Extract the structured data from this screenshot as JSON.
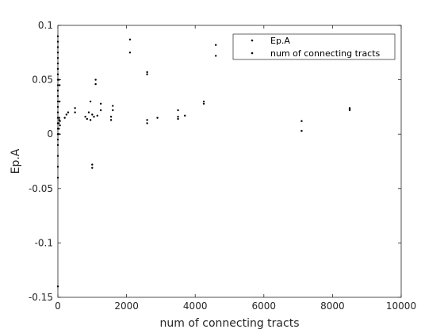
{
  "chart_data": {
    "type": "scatter",
    "title": "",
    "xlabel": "num of connecting tracts",
    "ylabel": "Ep.A",
    "xlim": [
      0,
      10000
    ],
    "ylim": [
      -0.15,
      0.1
    ],
    "xticks": [
      0,
      2000,
      4000,
      6000,
      8000,
      10000
    ],
    "yticks": [
      -0.15,
      -0.1,
      -0.05,
      0,
      0.05,
      0.1
    ],
    "xtick_labels": [
      "0",
      "2000",
      "4000",
      "6000",
      "8000",
      "10000"
    ],
    "ytick_labels": [
      "-0.15",
      "-0.1",
      "-0.05",
      "0",
      "0.05",
      "0.1"
    ],
    "grid": false,
    "legend_position": "top-right",
    "legend": [
      "Ep.A",
      "num of connecting tracts"
    ],
    "point_color": "#000000",
    "series": [
      {
        "name": "Ep.A",
        "points": [
          [
            0,
            -0.14
          ],
          [
            0,
            -0.04
          ],
          [
            0,
            -0.03
          ],
          [
            0,
            -0.02
          ],
          [
            0,
            -0.01
          ],
          [
            0,
            -0.005
          ],
          [
            0,
            0.0
          ],
          [
            0,
            0.005
          ],
          [
            0,
            0.01
          ],
          [
            0,
            0.015
          ],
          [
            0,
            0.02
          ],
          [
            0,
            0.025
          ],
          [
            0,
            0.03
          ],
          [
            0,
            0.035
          ],
          [
            0,
            0.04
          ],
          [
            0,
            0.045
          ],
          [
            0,
            0.05
          ],
          [
            0,
            0.055
          ],
          [
            0,
            0.06
          ],
          [
            0,
            0.065
          ],
          [
            0,
            0.07
          ],
          [
            0,
            0.075
          ],
          [
            0,
            0.08
          ],
          [
            0,
            0.085
          ],
          [
            0,
            0.09
          ],
          [
            30,
            0.0
          ],
          [
            30,
            0.005
          ],
          [
            30,
            0.01
          ],
          [
            40,
            0.015
          ],
          [
            40,
            0.013
          ],
          [
            50,
            0.03
          ],
          [
            50,
            0.045
          ],
          [
            30,
            0.05
          ],
          [
            60,
            0.012
          ],
          [
            60,
            0.008
          ],
          [
            200,
            0.015
          ],
          [
            250,
            0.018
          ],
          [
            300,
            0.02
          ],
          [
            500,
            0.024
          ],
          [
            500,
            0.02
          ],
          [
            800,
            0.016
          ],
          [
            850,
            0.014
          ],
          [
            900,
            0.02
          ],
          [
            950,
            0.013
          ],
          [
            950,
            0.03
          ],
          [
            1000,
            0.018
          ],
          [
            1050,
            0.016
          ],
          [
            1000,
            -0.028
          ],
          [
            1000,
            -0.031
          ],
          [
            1100,
            0.046
          ],
          [
            1100,
            0.05
          ],
          [
            1150,
            0.017
          ],
          [
            1250,
            0.022
          ],
          [
            1250,
            0.028
          ],
          [
            1550,
            0.013
          ],
          [
            1550,
            0.016
          ],
          [
            1600,
            0.022
          ],
          [
            1600,
            0.026
          ],
          [
            2100,
            0.087
          ],
          [
            2100,
            0.075
          ],
          [
            2600,
            0.057
          ],
          [
            2600,
            0.055
          ],
          [
            2600,
            0.013
          ],
          [
            2600,
            0.01
          ],
          [
            2900,
            0.015
          ],
          [
            3500,
            0.022
          ],
          [
            3500,
            0.014
          ],
          [
            3500,
            0.016
          ],
          [
            3700,
            0.017
          ],
          [
            4250,
            0.028
          ],
          [
            4250,
            0.03
          ],
          [
            4600,
            0.082
          ],
          [
            4600,
            0.072
          ],
          [
            7100,
            0.012
          ],
          [
            7100,
            0.003
          ],
          [
            8500,
            0.024
          ],
          [
            8500,
            0.023
          ],
          [
            8500,
            0.022
          ]
        ]
      }
    ]
  }
}
